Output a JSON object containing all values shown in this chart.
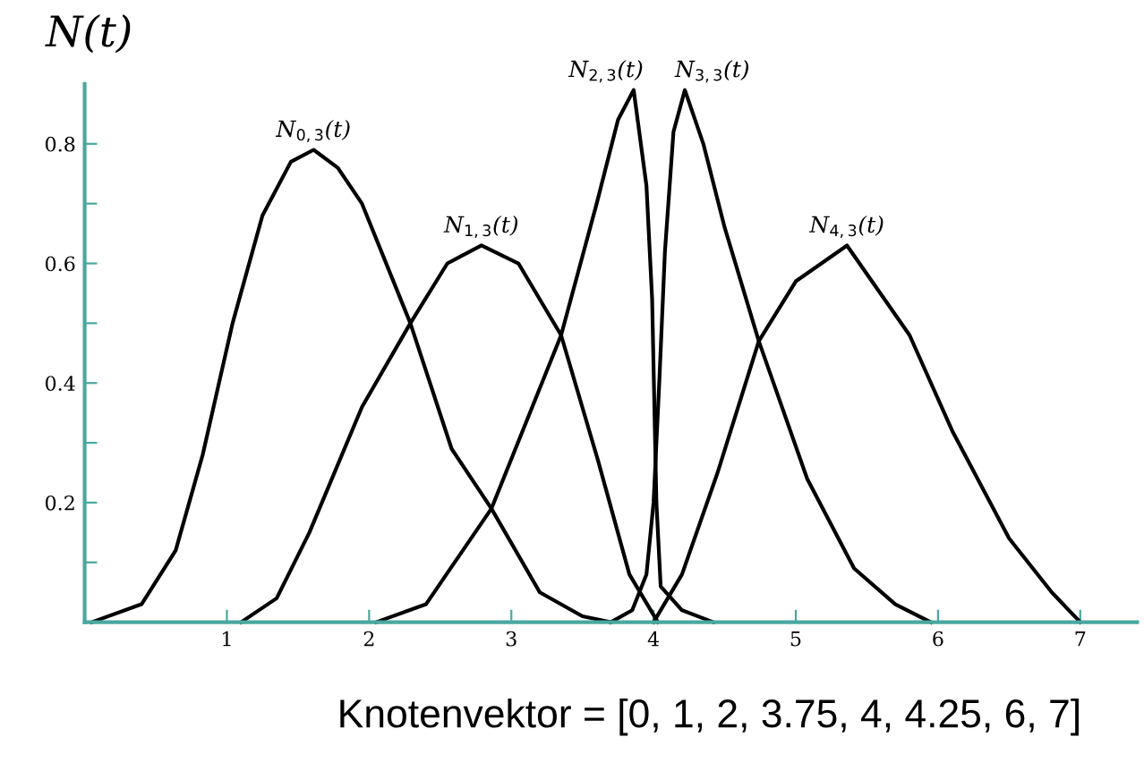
{
  "chart_data": {
    "type": "line",
    "ylabel": "N(t)",
    "xlim": [
      0,
      7.4
    ],
    "ylim": [
      0,
      0.9
    ],
    "xticks": [
      1,
      2,
      3,
      4,
      5,
      6,
      7
    ],
    "yticks": [
      {
        "value": 0.1,
        "label": null
      },
      0.2,
      {
        "value": 0.3,
        "label": null
      },
      0.4,
      {
        "value": 0.5,
        "label": null
      },
      0.6,
      {
        "value": 0.7,
        "label": null
      },
      0.8
    ],
    "grid": false,
    "legend": false,
    "marker": "none",
    "line_style": "solid",
    "series": [
      {
        "name": "N$_{0,3}$(t)",
        "color": "#000000",
        "x": [
          0.05,
          0.4,
          0.64,
          0.83,
          1.04,
          1.25,
          1.45,
          1.61,
          1.78,
          1.95,
          2.29,
          2.58,
          2.86,
          3.2,
          3.5,
          3.7
        ],
        "values": [
          0,
          0.03,
          0.12,
          0.28,
          0.5,
          0.68,
          0.77,
          0.79,
          0.76,
          0.7,
          0.5,
          0.29,
          0.19,
          0.05,
          0.01,
          0
        ]
      },
      {
        "name": "N$_{1,3}$(t)",
        "color": "#000000",
        "x": [
          1.1,
          1.35,
          1.58,
          1.95,
          2.29,
          2.55,
          2.79,
          3.05,
          3.35,
          3.61,
          3.83,
          4.03
        ],
        "values": [
          0,
          0.04,
          0.15,
          0.36,
          0.5,
          0.6,
          0.63,
          0.6,
          0.48,
          0.27,
          0.08,
          0
        ]
      },
      {
        "name": "N$_{2,3}$(t)",
        "color": "#000000",
        "x": [
          2.05,
          2.4,
          2.86,
          3.35,
          3.6,
          3.75,
          3.86,
          3.95,
          3.99,
          4.02,
          4.05,
          4.2,
          4.42
        ],
        "values": [
          0,
          0.03,
          0.19,
          0.48,
          0.7,
          0.84,
          0.89,
          0.73,
          0.54,
          0.2,
          0.06,
          0.02,
          0
        ]
      },
      {
        "name": "N$_{3,3}$(t)",
        "color": "#000000",
        "x": [
          3.7,
          3.85,
          3.95,
          4.0,
          4.04,
          4.08,
          4.14,
          4.22,
          4.35,
          4.5,
          4.74,
          5.08,
          5.41,
          5.7,
          5.95
        ],
        "values": [
          0,
          0.02,
          0.08,
          0.2,
          0.4,
          0.62,
          0.82,
          0.89,
          0.8,
          0.66,
          0.47,
          0.24,
          0.09,
          0.03,
          0
        ]
      },
      {
        "name": "N$_{4,3}$(t)",
        "color": "#000000",
        "x": [
          4.0,
          4.2,
          4.45,
          4.74,
          5.0,
          5.36,
          5.8,
          6.1,
          6.5,
          6.8,
          7.0
        ],
        "values": [
          0,
          0.08,
          0.25,
          0.47,
          0.57,
          0.63,
          0.48,
          0.32,
          0.14,
          0.05,
          0
        ]
      }
    ],
    "annotations": [
      "Knotenvektor = [0, 1, 2, 3.75, 4, 4.25, 6, 7]"
    ]
  }
}
